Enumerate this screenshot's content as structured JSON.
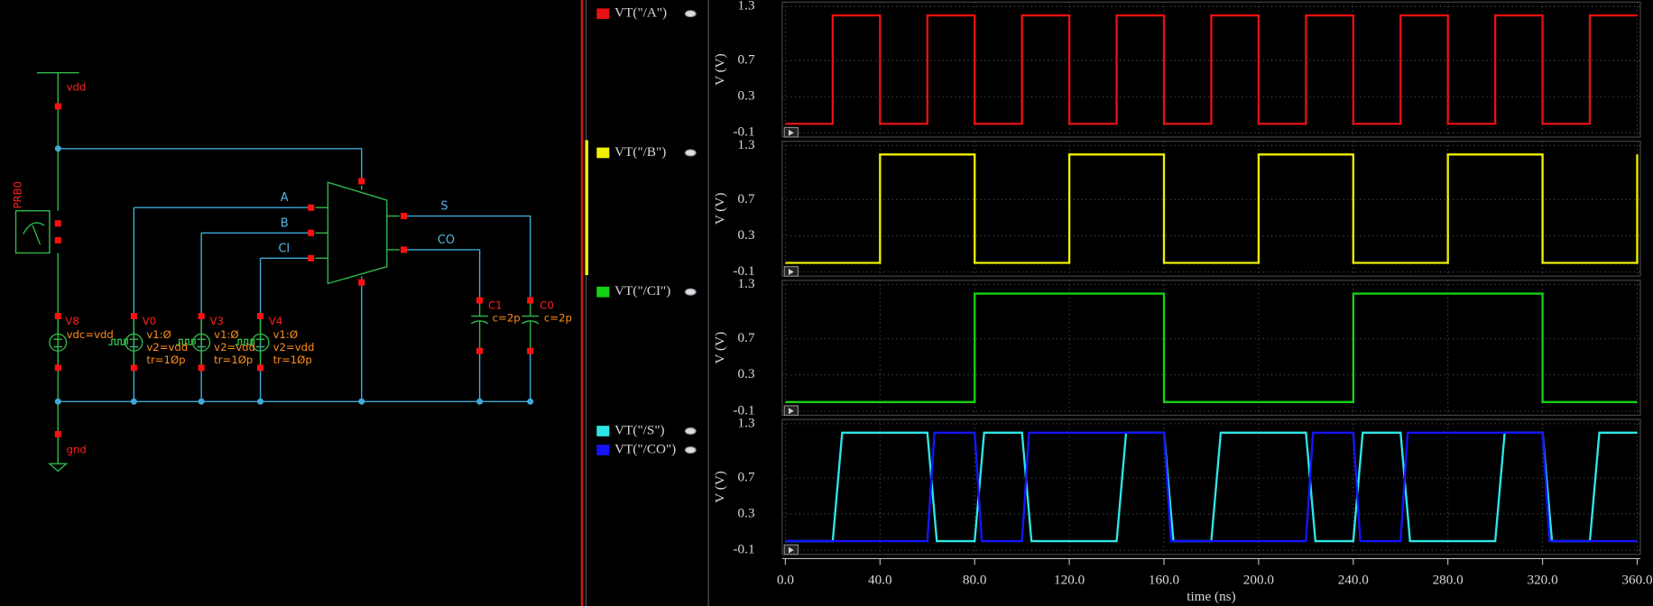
{
  "schematic": {
    "supply": "vdd",
    "ground": "gnd",
    "probe": "PRB0",
    "sources": [
      {
        "name": "V8",
        "params": [
          "vdc=vdd"
        ]
      },
      {
        "name": "V0",
        "params": [
          "v1:Ø",
          "v2=vdd",
          "tr=1Øp"
        ]
      },
      {
        "name": "V3",
        "params": [
          "v1:Ø",
          "v2=vdd",
          "tr=1Øp"
        ]
      },
      {
        "name": "V4",
        "params": [
          "v1:Ø",
          "v2=vdd",
          "tr=1Øp"
        ]
      }
    ],
    "capacitors": [
      {
        "name": "C1",
        "param": "c=2p"
      },
      {
        "name": "C0",
        "param": "c=2p"
      }
    ],
    "nets": [
      "A",
      "B",
      "CI",
      "S",
      "CO"
    ]
  },
  "chart_data": [
    {
      "type": "line",
      "ylabel": "V (V)",
      "ylim": [
        -0.1,
        1.3
      ],
      "yticks": [
        1.3,
        0.7,
        0.3,
        -0.1
      ],
      "series": [
        {
          "name": "VT(\"/A\")",
          "color": "#e81010",
          "x": [
            0,
            20,
            20,
            40,
            40,
            60,
            60,
            80,
            80,
            100,
            100,
            120,
            120,
            140,
            140,
            160,
            160,
            180,
            180,
            200,
            200,
            220,
            220,
            240,
            240,
            260,
            260,
            280,
            280,
            300,
            300,
            320,
            320,
            340,
            340,
            360
          ],
          "values": [
            0,
            0,
            1.2,
            1.2,
            0,
            0,
            1.2,
            1.2,
            0,
            0,
            1.2,
            1.2,
            0,
            0,
            1.2,
            1.2,
            0,
            0,
            1.2,
            1.2,
            0,
            0,
            1.2,
            1.2,
            0,
            0,
            1.2,
            1.2,
            0,
            0,
            1.2,
            1.2,
            0,
            0,
            1.2,
            1.2
          ]
        }
      ]
    },
    {
      "type": "line",
      "ylabel": "V (V)",
      "ylim": [
        -0.1,
        1.3
      ],
      "yticks": [
        1.3,
        0.7,
        0.3,
        -0.1
      ],
      "series": [
        {
          "name": "VT(\"/B\")",
          "color": "#f0f000",
          "x": [
            0,
            40,
            40,
            80,
            80,
            120,
            120,
            160,
            160,
            200,
            200,
            240,
            240,
            280,
            280,
            320,
            320,
            360,
            360
          ],
          "values": [
            0,
            0,
            1.2,
            1.2,
            0,
            0,
            1.2,
            1.2,
            0,
            0,
            1.2,
            1.2,
            0,
            0,
            1.2,
            1.2,
            0,
            0,
            1.2
          ]
        }
      ]
    },
    {
      "type": "line",
      "ylabel": "V (V)",
      "ylim": [
        -0.1,
        1.3
      ],
      "yticks": [
        1.3,
        0.7,
        0.3,
        -0.1
      ],
      "series": [
        {
          "name": "VT(\"/CI\")",
          "color": "#14d214",
          "x": [
            0,
            80,
            80,
            160,
            160,
            240,
            240,
            320,
            320,
            360
          ],
          "values": [
            0,
            0,
            1.2,
            1.2,
            0,
            0,
            1.2,
            1.2,
            0,
            0
          ]
        }
      ]
    },
    {
      "type": "line",
      "ylabel": "V (V)",
      "ylim": [
        -0.1,
        1.3
      ],
      "yticks": [
        1.3,
        0.7,
        0.3,
        -0.1
      ],
      "xlabel": "time (ns)",
      "xlim": [
        0,
        360
      ],
      "xticks": [
        {
          "value": 0,
          "label": "0.0"
        },
        {
          "value": 40,
          "label": "40.0"
        },
        {
          "value": 80,
          "label": "80.0"
        },
        {
          "value": 120,
          "label": "120.0"
        },
        {
          "value": 160,
          "label": "160.0"
        },
        {
          "value": 200,
          "label": "200.0"
        },
        {
          "value": 240,
          "label": "240.0"
        },
        {
          "value": 280,
          "label": "280.0"
        },
        {
          "value": 320,
          "label": "320.0"
        },
        {
          "value": 360,
          "label": "360.0"
        }
      ],
      "series": [
        {
          "name": "VT(\"/S\")",
          "color": "#2ee6e6",
          "x": [
            0,
            20,
            24,
            60,
            64,
            80,
            84,
            100,
            104,
            140,
            144,
            160,
            164,
            180,
            184,
            220,
            224,
            240,
            244,
            260,
            264,
            300,
            304,
            320,
            324,
            340,
            344,
            360
          ],
          "values": [
            0,
            0,
            1.2,
            1.2,
            0,
            0,
            1.2,
            1.2,
            0,
            0,
            1.2,
            1.2,
            0,
            0,
            1.2,
            1.2,
            0,
            0,
            1.2,
            1.2,
            0,
            0,
            1.2,
            1.2,
            0,
            0,
            1.2,
            1.2
          ]
        },
        {
          "name": "VT(\"/CO\")",
          "color": "#1414ff",
          "x": [
            0,
            60,
            63,
            80,
            83,
            100,
            103,
            160,
            163,
            220,
            223,
            240,
            243,
            260,
            263,
            320,
            323,
            360
          ],
          "values": [
            0,
            0,
            1.2,
            1.2,
            0,
            0,
            1.2,
            1.2,
            0,
            0,
            1.2,
            1.2,
            0,
            0,
            1.2,
            1.2,
            0,
            0
          ]
        }
      ]
    }
  ]
}
